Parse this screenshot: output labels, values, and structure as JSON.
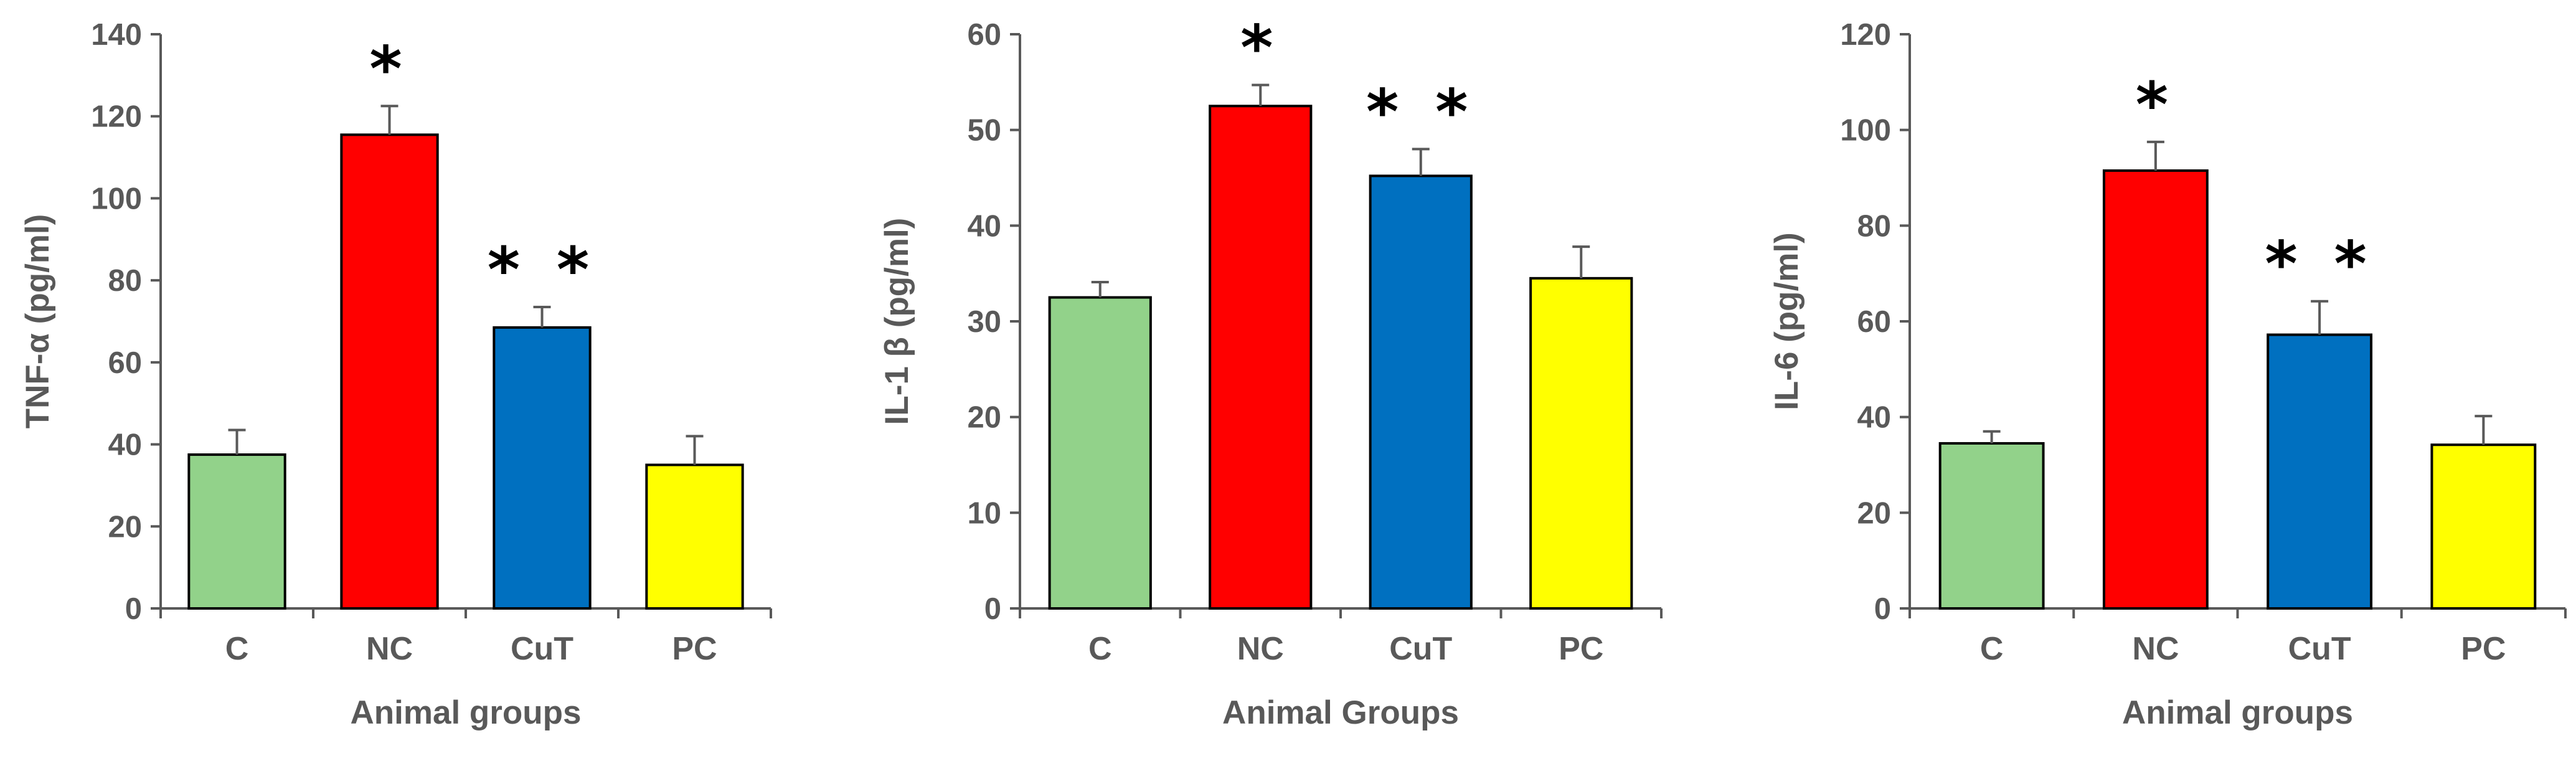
{
  "chart_data": [
    {
      "type": "bar",
      "title": "",
      "xlabel": "Animal groups",
      "ylabel": "TNF-α (pg/ml)",
      "ylim": [
        0,
        140
      ],
      "yticks": [
        0,
        20,
        40,
        60,
        80,
        100,
        120,
        140
      ],
      "categories": [
        "C",
        "NC",
        "CuT",
        "PC"
      ],
      "values": [
        37.5,
        115.5,
        68.5,
        35
      ],
      "errors": [
        6,
        7,
        5,
        7
      ],
      "colors": [
        "#92D28A",
        "#FF0000",
        "#0070C0",
        "#FFFF00"
      ],
      "annotations": [
        "",
        "*",
        "**",
        ""
      ]
    },
    {
      "type": "bar",
      "title": "",
      "xlabel": "Animal Groups",
      "ylabel": "IL-1 β (pg/ml)",
      "ylim": [
        0,
        60
      ],
      "yticks": [
        0,
        10,
        20,
        30,
        40,
        50,
        60
      ],
      "categories": [
        "C",
        "NC",
        "CuT",
        "PC"
      ],
      "values": [
        32.5,
        52.5,
        45.2,
        34.5
      ],
      "errors": [
        1.6,
        2.2,
        2.8,
        3.3
      ],
      "colors": [
        "#92D28A",
        "#FF0000",
        "#0070C0",
        "#FFFF00"
      ],
      "annotations": [
        "",
        "*",
        "**",
        ""
      ]
    },
    {
      "type": "bar",
      "title": "",
      "xlabel": "Animal groups",
      "ylabel": "IL-6 (pg/ml)",
      "ylim": [
        0,
        120
      ],
      "yticks": [
        0,
        20,
        40,
        60,
        80,
        100,
        120
      ],
      "categories": [
        "C",
        "NC",
        "CuT",
        "PC"
      ],
      "values": [
        34.5,
        91.5,
        57.2,
        34.2
      ],
      "errors": [
        2.5,
        6,
        7,
        6
      ],
      "colors": [
        "#92D28A",
        "#FF0000",
        "#0070C0",
        "#FFFF00"
      ],
      "annotations": [
        "",
        "*",
        "**",
        ""
      ]
    }
  ]
}
